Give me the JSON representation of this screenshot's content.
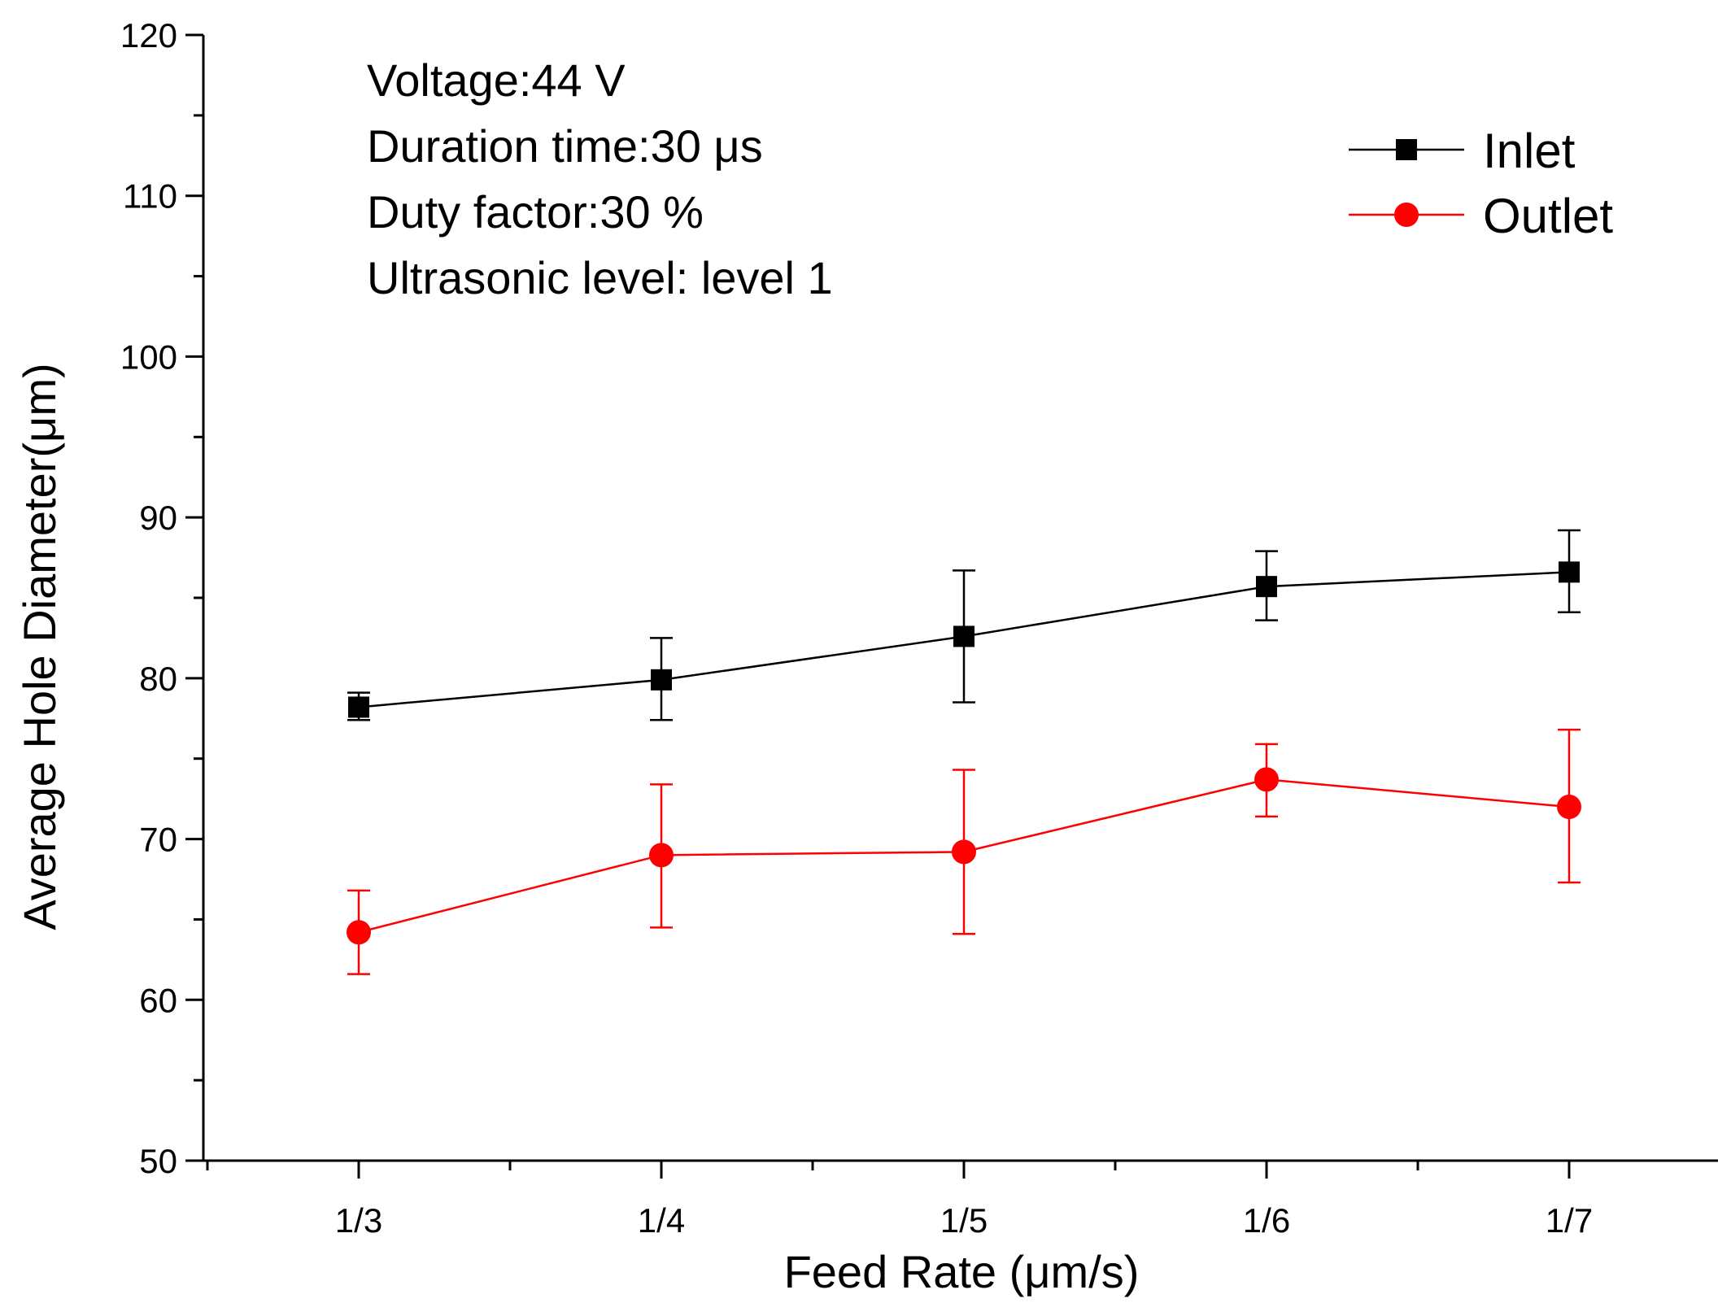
{
  "chart_data": {
    "type": "line",
    "xlabel": "Feed Rate (μm/s)",
    "ylabel": "Average Hole Diameter(μm)",
    "categories": [
      "1/3",
      "1/4",
      "1/5",
      "1/6",
      "1/7"
    ],
    "ylim": [
      50,
      120
    ],
    "yticks": [
      50,
      60,
      70,
      80,
      90,
      100,
      110,
      120
    ],
    "yminor_step": 5,
    "grid": false,
    "legend_position": "top-right",
    "annotations": [
      "Voltage:44 V",
      "Duration time:30 μs",
      "Duty factor:30 %",
      "Ultrasonic level: level 1"
    ],
    "series": [
      {
        "name": "Inlet",
        "color": "#000000",
        "marker": "square",
        "values": [
          78.2,
          79.9,
          82.6,
          85.7,
          86.6
        ],
        "error_low": [
          77.4,
          77.4,
          78.5,
          83.6,
          84.1
        ],
        "error_high": [
          79.1,
          82.5,
          86.7,
          87.9,
          89.2
        ]
      },
      {
        "name": "Outlet",
        "color": "#ff0000",
        "marker": "circle",
        "values": [
          64.2,
          69.0,
          69.2,
          73.7,
          72.0
        ],
        "error_low": [
          61.6,
          64.5,
          64.1,
          71.4,
          67.3
        ],
        "error_high": [
          66.8,
          73.4,
          74.3,
          75.9,
          76.8
        ]
      }
    ]
  }
}
